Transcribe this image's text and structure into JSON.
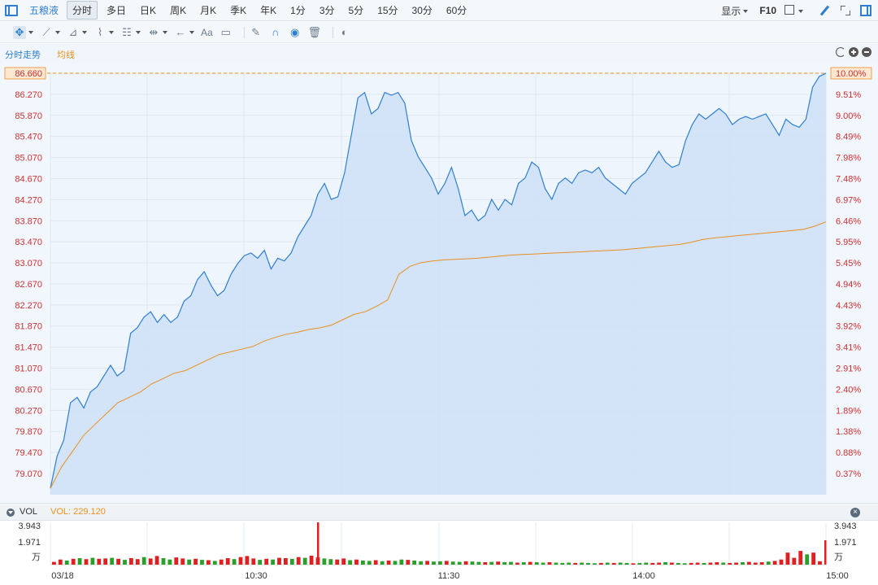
{
  "toolbar": {
    "stock_name": "五粮液",
    "periods": [
      "分时",
      "多日",
      "日K",
      "周K",
      "月K",
      "季K",
      "年K",
      "1分",
      "3分",
      "5分",
      "15分",
      "30分",
      "60分"
    ],
    "active_period": "分时",
    "display_label": "显示",
    "f10_label": "F10"
  },
  "drawbar": {
    "text_tool_label": "Aa"
  },
  "legend": {
    "title": "分时走势",
    "avg_label": "均线"
  },
  "colors": {
    "price_line": "#2f7fd0",
    "avg_line": "#e8901f",
    "up": "#e02020",
    "down": "#2aa02a",
    "ref_line": "#e8901f"
  },
  "chart_data": {
    "type": "line",
    "x_ticks": [
      "03/18",
      "10:30",
      "11:30",
      "14:00",
      "15:00"
    ],
    "y_left_labels": [
      "86.660",
      "86.270",
      "85.870",
      "85.470",
      "85.070",
      "84.670",
      "84.270",
      "83.870",
      "83.470",
      "83.070",
      "82.670",
      "82.270",
      "81.870",
      "81.470",
      "81.070",
      "80.670",
      "80.270",
      "79.870",
      "79.470",
      "79.070"
    ],
    "y_right_labels": [
      "10.00%",
      "9.51%",
      "9.00%",
      "8.49%",
      "7.98%",
      "7.48%",
      "6.97%",
      "6.46%",
      "5.95%",
      "5.45%",
      "4.94%",
      "4.43%",
      "3.92%",
      "3.41%",
      "2.91%",
      "2.40%",
      "1.89%",
      "1.38%",
      "0.88%",
      "0.37%"
    ],
    "ylim": [
      78.78,
      86.66
    ],
    "series": [
      {
        "name": "",
        "values": [
          78.9,
          79.5,
          79.8,
          80.5,
          80.6,
          80.4,
          80.7,
          80.8,
          81.0,
          81.2,
          81.0,
          81.1,
          81.8,
          81.9,
          82.1,
          82.2,
          82.0,
          82.15,
          82.0,
          82.1,
          82.4,
          82.5,
          82.8,
          82.95,
          82.7,
          82.5,
          82.6,
          82.9,
          83.1,
          83.25,
          83.3,
          83.2,
          83.35,
          83.0,
          83.2,
          83.15,
          83.3,
          83.6,
          83.8,
          84.0,
          84.4,
          84.6,
          84.3,
          84.35,
          84.8,
          85.5,
          86.2,
          86.3,
          85.9,
          86.0,
          86.3,
          86.25,
          86.3,
          86.1,
          85.4,
          85.1,
          84.9,
          84.7,
          84.4,
          84.6,
          84.9,
          84.5,
          84.0,
          84.1,
          83.9,
          84.0,
          84.3,
          84.1,
          84.3,
          84.2,
          84.6,
          84.7,
          85.0,
          84.9,
          84.5,
          84.3,
          84.6,
          84.7,
          84.6,
          84.8,
          84.85,
          84.8,
          84.9,
          84.7,
          84.6,
          84.5,
          84.4,
          84.6,
          84.7,
          84.8,
          85.0,
          85.2,
          85.0,
          84.9,
          84.95,
          85.4,
          85.7,
          85.9,
          85.8,
          85.9,
          86.0,
          85.9,
          85.7,
          85.8,
          85.85,
          85.8,
          85.85,
          85.9,
          85.7,
          85.5,
          85.8,
          85.7,
          85.65,
          85.8,
          86.4,
          86.6,
          86.66
        ]
      },
      {
        "name": "",
        "values": [
          78.9,
          79.3,
          79.6,
          79.9,
          80.1,
          80.3,
          80.5,
          80.6,
          80.7,
          80.85,
          80.95,
          81.05,
          81.1,
          81.2,
          81.3,
          81.4,
          81.45,
          81.5,
          81.55,
          81.65,
          81.72,
          81.78,
          81.82,
          81.87,
          81.9,
          81.95,
          82.05,
          82.15,
          82.2,
          82.3,
          82.42,
          82.9,
          83.05,
          83.12,
          83.15,
          83.17,
          83.18,
          83.19,
          83.2,
          83.22,
          83.24,
          83.26,
          83.27,
          83.28,
          83.29,
          83.3,
          83.31,
          83.32,
          83.33,
          83.34,
          83.35,
          83.36,
          83.38,
          83.4,
          83.42,
          83.44,
          83.46,
          83.5,
          83.55,
          83.58,
          83.6,
          83.62,
          83.64,
          83.66,
          83.68,
          83.7,
          83.72,
          83.74,
          83.8,
          83.88
        ]
      }
    ]
  },
  "vol_panel": {
    "title": "VOL",
    "value_text": "VOL: 229.120",
    "y_labels_left": [
      "3.943",
      "1.971",
      "万"
    ],
    "y_labels_right": [
      "3.943",
      "1.971",
      "万"
    ],
    "ylim": [
      0,
      3.943
    ],
    "bars": [
      0.16,
      0.3,
      0.24,
      0.34,
      0.38,
      0.32,
      0.4,
      0.34,
      0.36,
      0.4,
      0.34,
      0.28,
      0.38,
      0.32,
      0.44,
      0.36,
      0.5,
      0.38,
      0.3,
      0.42,
      0.36,
      0.3,
      0.34,
      0.28,
      0.26,
      0.22,
      0.3,
      0.38,
      0.32,
      0.44,
      0.5,
      0.36,
      0.28,
      0.34,
      0.3,
      0.4,
      0.38,
      0.34,
      0.44,
      0.4,
      0.52,
      0.42,
      0.36,
      0.32,
      0.3,
      0.36,
      0.26,
      0.3,
      0.24,
      0.22,
      0.26,
      0.2,
      0.24,
      0.22,
      0.3,
      0.28,
      0.24,
      0.2,
      0.22,
      0.18,
      0.2,
      0.22,
      0.18,
      0.16,
      0.2,
      0.18,
      0.16,
      0.14,
      0.16,
      0.18,
      0.14,
      0.16,
      0.12,
      0.14,
      0.16,
      0.14,
      0.12,
      0.14,
      0.12,
      0.1,
      0.12,
      0.1,
      0.12,
      0.1,
      0.08,
      0.1,
      0.12,
      0.1,
      0.12,
      0.1,
      0.08,
      0.1,
      0.12,
      0.1,
      0.12,
      0.14,
      0.12,
      0.1,
      0.08,
      0.1,
      0.12,
      0.1,
      0.12,
      0.14,
      0.12,
      0.1,
      0.12,
      0.14,
      0.16,
      0.12,
      0.14,
      0.18,
      0.22,
      0.3,
      0.7,
      0.4,
      0.8,
      0.6,
      0.7,
      0.2
    ],
    "bar_dirs": [
      1,
      1,
      0,
      1,
      0,
      1,
      0,
      1,
      1,
      0,
      1,
      0,
      1,
      1,
      0,
      1,
      1,
      0,
      0,
      1,
      1,
      0,
      1,
      0,
      1,
      0,
      1,
      1,
      0,
      1,
      1,
      1,
      0,
      1,
      0,
      1,
      1,
      0,
      1,
      0,
      1,
      1,
      0,
      0,
      1,
      1,
      0,
      1,
      0,
      0,
      1,
      0,
      1,
      0,
      0,
      1,
      0,
      0,
      1,
      0,
      0,
      1,
      0,
      0,
      1,
      0,
      0,
      1,
      0,
      1,
      0,
      0,
      1,
      0,
      1,
      0,
      0,
      1,
      0,
      0,
      0,
      1,
      0,
      0,
      0,
      1,
      0,
      1,
      0,
      0,
      1,
      0,
      0,
      1,
      1,
      0,
      1,
      0,
      0,
      1,
      1,
      0,
      1,
      1,
      0,
      1,
      1,
      0,
      1,
      1,
      1,
      0,
      1,
      1,
      1,
      1,
      1,
      0,
      1,
      1
    ],
    "spike_value": 3.943
  }
}
